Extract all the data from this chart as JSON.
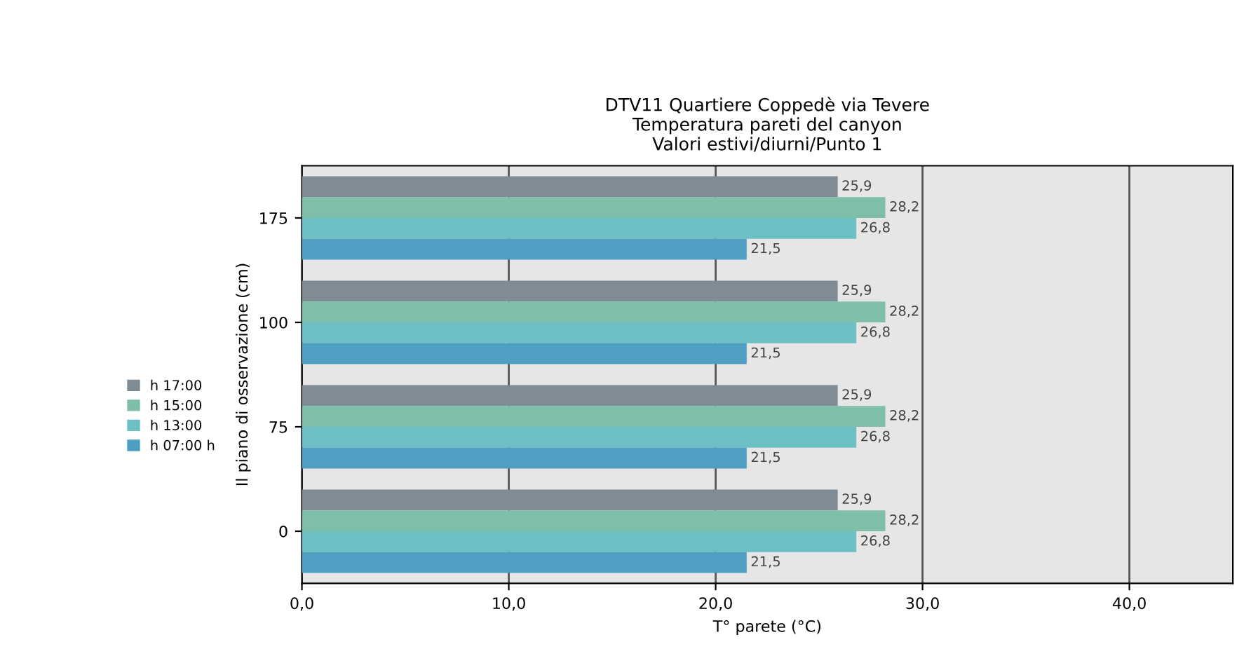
{
  "chart_data": {
    "type": "bar",
    "orientation": "horizontal",
    "title": "DTV11 Quartiere Coppedè via Tevere\nTemperatura pareti del canyon\nValori estivi/diurni/Punto 1",
    "xlabel": "T° parete (°C)",
    "ylabel": "Il piano di osservazione (cm)",
    "categories": [
      "175",
      "100",
      "75",
      "0"
    ],
    "series": [
      {
        "name": "h 17:00",
        "color": "#7f8c95",
        "values": [
          25.9,
          25.9,
          25.9,
          25.9
        ],
        "value_labels": [
          "25,9",
          "25,9",
          "25,9",
          "25,9"
        ]
      },
      {
        "name": "h 15:00",
        "color": "#7fbfa8",
        "values": [
          28.2,
          28.2,
          28.2,
          28.2
        ],
        "value_labels": [
          "28,2",
          "28,2",
          "28,2",
          "28,2"
        ]
      },
      {
        "name": "h 13:00",
        "color": "#6cc0c4",
        "values": [
          26.8,
          26.8,
          26.8,
          26.8
        ],
        "value_labels": [
          "26,8",
          "26,8",
          "26,8",
          "26,8"
        ]
      },
      {
        "name": "h 07:00 h",
        "color": "#4f9fc4",
        "values": [
          21.5,
          21.5,
          21.5,
          21.5
        ],
        "value_labels": [
          "21,5",
          "21,5",
          "21,5",
          "21,5"
        ]
      }
    ],
    "xlim": [
      0,
      45
    ],
    "xticks": [
      {
        "value": 0,
        "label": "0,0"
      },
      {
        "value": 10,
        "label": "10,0"
      },
      {
        "value": 20,
        "label": "20,0"
      },
      {
        "value": 30,
        "label": "30,0"
      },
      {
        "value": 40,
        "label": "40,0"
      }
    ],
    "grid": "x",
    "legend": "left"
  }
}
